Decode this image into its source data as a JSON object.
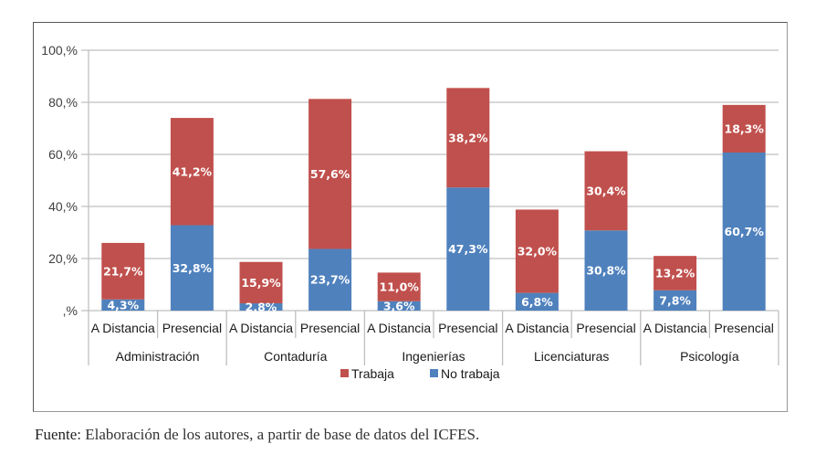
{
  "chart_data": {
    "type": "bar",
    "stacked": true,
    "title": "",
    "xlabel": "",
    "ylabel": "",
    "ylim": [
      0,
      100
    ],
    "yticks": [
      0,
      20,
      40,
      60,
      80,
      100
    ],
    "ytick_labels": [
      ",%",
      "20,%",
      "40,%",
      "60,%",
      "80,%",
      "100,%"
    ],
    "grid": true,
    "legend_position": "bottom",
    "groups": [
      "Administración",
      "Contaduría",
      "Ingenierías",
      "Licenciaturas",
      "Psicología"
    ],
    "subcategories": [
      "A Distancia",
      "Presencial"
    ],
    "categories": [
      "A Distancia",
      "Presencial",
      "A Distancia",
      "Presencial",
      "A Distancia",
      "Presencial",
      "A Distancia",
      "Presencial",
      "A Distancia",
      "Presencial"
    ],
    "series": [
      {
        "name": "No trabaja",
        "color": "#4f81bd",
        "values": [
          4.3,
          32.8,
          2.8,
          23.7,
          3.6,
          47.3,
          6.8,
          30.8,
          7.8,
          60.7
        ],
        "labels": [
          "4,3%",
          "32,8%",
          "2,8%",
          "23,7%",
          "3,6%",
          "47,3%",
          "6,8%",
          "30,8%",
          "7,8%",
          "60,7%"
        ]
      },
      {
        "name": "Trabaja",
        "color": "#c0504d",
        "values": [
          21.7,
          41.2,
          15.9,
          57.6,
          11.0,
          38.2,
          32.0,
          30.4,
          13.2,
          18.3
        ],
        "labels": [
          "21,7%",
          "41,2%",
          "15,9%",
          "57,6%",
          "11,0%",
          "38,2%",
          "32,0%",
          "30,4%",
          "13,2%",
          "18,3%"
        ]
      }
    ],
    "legend": [
      {
        "name": "Trabaja",
        "color": "#c0504d"
      },
      {
        "name": "No trabaja",
        "color": "#4f81bd"
      }
    ]
  },
  "caption": {
    "lead": "Fuente",
    "text": ": Elaboración de los autores, a partir de base de datos del ICFES."
  }
}
